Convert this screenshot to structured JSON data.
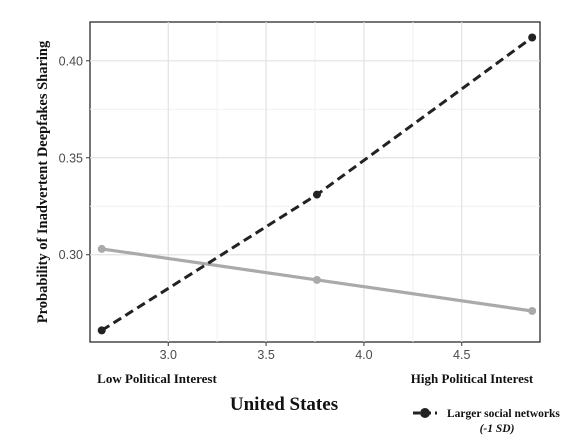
{
  "chart_data": {
    "type": "line",
    "title": "",
    "subtitle": "United States",
    "xlabel": "",
    "ylabel": "Probability of Inadvertent Deepfakes Sharing",
    "x_extremes": {
      "low": "Low Political Interest",
      "high": "High Political Interest"
    },
    "xlim": [
      2.6,
      4.9
    ],
    "ylim": [
      0.255,
      0.42
    ],
    "x_ticks": [
      3.0,
      3.5,
      4.0,
      4.5
    ],
    "x_tick_labels": [
      "3.0",
      "3.5",
      "4.0",
      "4.5"
    ],
    "y_ticks": [
      0.3,
      0.35,
      0.4
    ],
    "y_tick_labels": [
      "0.30",
      "0.35",
      "0.40"
    ],
    "grid": true,
    "legend_position": "bottom-right",
    "series": [
      {
        "name": "Larger social networks",
        "name_note": "(-1 SD)",
        "style": "dashed",
        "color": "#222222",
        "x": [
          2.66,
          3.76,
          4.86
        ],
        "y": [
          0.261,
          0.331,
          0.412
        ]
      },
      {
        "style": "solid",
        "color": "#aaaaaa",
        "x": [
          2.66,
          3.76,
          4.86
        ],
        "y": [
          0.303,
          0.287,
          0.271
        ]
      }
    ]
  }
}
